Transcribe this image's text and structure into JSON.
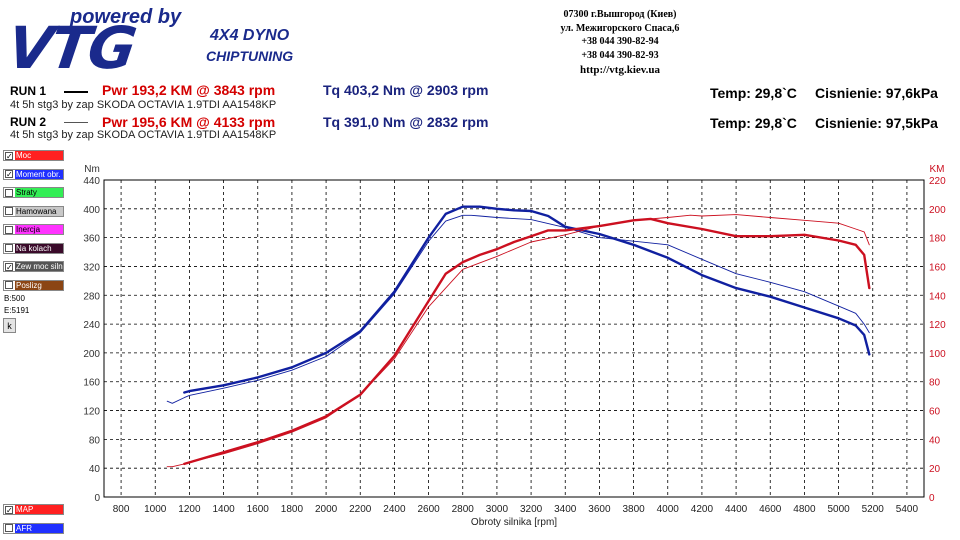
{
  "logo": {
    "powered": "powered by",
    "brand": "VTG",
    "dyno": "4X4 DYNO",
    "chiptuning": "CHIPTUNING"
  },
  "contact": {
    "line1": "07300 г.Вышгород (Киев)",
    "line2": "ул. Межигорского Спаса,6",
    "phone1": "+38 044 390-82-94",
    "phone2": "+38 044 390-82-93",
    "url": "http://vtg.kiev.ua"
  },
  "runs": [
    {
      "label": "RUN 1",
      "pwr": "Pwr  193,2 KM @ 3843 rpm",
      "tq": "Tq 403,2 Nm @ 2903 rpm",
      "desc": "4t 5h stg3 by zap SKODA OCTAVIA 1.9TDI AA1548KP",
      "temp": "Temp: 29,8`C",
      "pressure": "Cisnienie: 97,6kPa"
    },
    {
      "label": "RUN 2",
      "pwr": "Pwr  195,6 KM @ 4133 rpm",
      "tq": "Tq 391,0 Nm @ 2832 rpm",
      "desc": "4t 5h stg3 by zap SKODA OCTAVIA 1.9TDI AA1548KP",
      "temp": "Temp: 29,8`C",
      "pressure": "Cisnienie: 97,5kPa"
    }
  ],
  "legend": [
    {
      "label": "Moc",
      "color": "#ff2020",
      "checked": true,
      "text_color": "#ffffff"
    },
    {
      "label": "Moment obr.",
      "color": "#2030ff",
      "checked": true,
      "text_color": "#ffffff"
    },
    {
      "label": "Straty",
      "color": "#33ee55",
      "checked": false,
      "text_color": "#000000"
    },
    {
      "label": "Hamowana",
      "color": "#c8c8c8",
      "checked": false,
      "text_color": "#000000"
    },
    {
      "label": "Inercja",
      "color": "#ff33ff",
      "checked": false,
      "text_color": "#000000"
    },
    {
      "label": "Na kolach",
      "color": "#3a0a2a",
      "checked": false,
      "text_color": "#ffffff"
    },
    {
      "label": "Zew moc silnika",
      "color": "#555555",
      "checked": true,
      "text_color": "#ffffff"
    },
    {
      "label": "Poslizg",
      "color": "#8b4513",
      "checked": false,
      "text_color": "#ffffff"
    }
  ],
  "legend_bottom": [
    {
      "label": "MAP",
      "color": "#ff2020",
      "checked": true,
      "text_color": "#ffffff"
    },
    {
      "label": "AFR",
      "color": "#2030ff",
      "checked": false,
      "text_color": "#ffffff"
    }
  ],
  "range": {
    "b": "B:500",
    "e": "E:5191"
  },
  "k_button": "k",
  "chart_data": {
    "type": "line",
    "xlabel": "Obroty silnika [rpm]",
    "ylabel_left": "Nm",
    "ylabel_right": "KM",
    "xlim": [
      700,
      5500
    ],
    "xticks": [
      800,
      1000,
      1200,
      1400,
      1600,
      1800,
      2000,
      2200,
      2400,
      2600,
      2800,
      3000,
      3200,
      3400,
      3600,
      3800,
      4000,
      4200,
      4400,
      4600,
      4800,
      5000,
      5200,
      5400
    ],
    "ylim_left": [
      0,
      440
    ],
    "yticks_left": [
      0,
      40,
      80,
      120,
      160,
      200,
      240,
      280,
      320,
      360,
      400,
      440
    ],
    "ylim_right": [
      0,
      220
    ],
    "yticks_right": [
      0,
      20,
      40,
      60,
      80,
      100,
      120,
      140,
      160,
      180,
      200,
      220
    ],
    "grid": true,
    "colors": {
      "torque": "#1020a0",
      "power": "#cc1020",
      "grid": "#000000"
    },
    "series": [
      {
        "name": "Tq RUN 1",
        "axis": "left",
        "style": "thick",
        "x": [
          1170,
          1200,
          1400,
          1600,
          1800,
          2000,
          2200,
          2400,
          2600,
          2700,
          2800,
          2900,
          3000,
          3100,
          3200,
          3300,
          3400,
          3600,
          3800,
          4000,
          4200,
          4400,
          4600,
          4800,
          5000,
          5100,
          5150,
          5180
        ],
        "y": [
          145,
          147,
          155,
          166,
          180,
          200,
          230,
          285,
          360,
          393,
          403,
          403,
          400,
          398,
          397,
          390,
          375,
          365,
          350,
          332,
          308,
          290,
          278,
          263,
          248,
          238,
          225,
          198
        ]
      },
      {
        "name": "Tq RUN 2",
        "axis": "left",
        "style": "thin",
        "x": [
          1070,
          1100,
          1170,
          1200,
          1400,
          1600,
          1800,
          2000,
          2200,
          2400,
          2600,
          2700,
          2800,
          2850,
          2900,
          3000,
          3200,
          3400,
          3600,
          3800,
          4000,
          4200,
          4400,
          4600,
          4800,
          5000,
          5100,
          5150,
          5180
        ],
        "y": [
          133,
          130,
          138,
          141,
          151,
          162,
          176,
          195,
          228,
          282,
          355,
          383,
          391,
          391,
          390,
          388,
          385,
          374,
          360,
          355,
          350,
          330,
          310,
          298,
          285,
          265,
          255,
          240,
          228
        ]
      },
      {
        "name": "Pwr RUN 1",
        "axis": "right",
        "style": "thick",
        "x": [
          1170,
          1200,
          1400,
          1600,
          1800,
          2000,
          2200,
          2400,
          2600,
          2700,
          2800,
          2900,
          3000,
          3100,
          3200,
          3300,
          3400,
          3600,
          3700,
          3800,
          3900,
          4000,
          4200,
          4400,
          4600,
          4800,
          5000,
          5100,
          5150,
          5180
        ],
        "y": [
          23,
          24,
          31,
          38,
          46,
          56,
          71,
          98,
          136,
          155,
          163,
          168,
          172,
          177,
          181,
          185,
          185,
          188,
          190,
          192,
          193,
          190,
          186,
          181,
          181,
          182,
          178,
          175,
          168,
          145
        ]
      },
      {
        "name": "Pwr RUN 2",
        "axis": "right",
        "style": "thin",
        "x": [
          1070,
          1100,
          1170,
          1200,
          1400,
          1600,
          1800,
          2000,
          2200,
          2400,
          2600,
          2800,
          3000,
          3200,
          3400,
          3600,
          3800,
          4000,
          4133,
          4200,
          4400,
          4600,
          4800,
          5000,
          5100,
          5150,
          5180
        ],
        "y": [
          21,
          21,
          23,
          24,
          30,
          37,
          45,
          55,
          71,
          96,
          132,
          158,
          167,
          177,
          182,
          188,
          192,
          194,
          195.6,
          195,
          196,
          194,
          192,
          190,
          186,
          184,
          175
        ]
      }
    ]
  }
}
